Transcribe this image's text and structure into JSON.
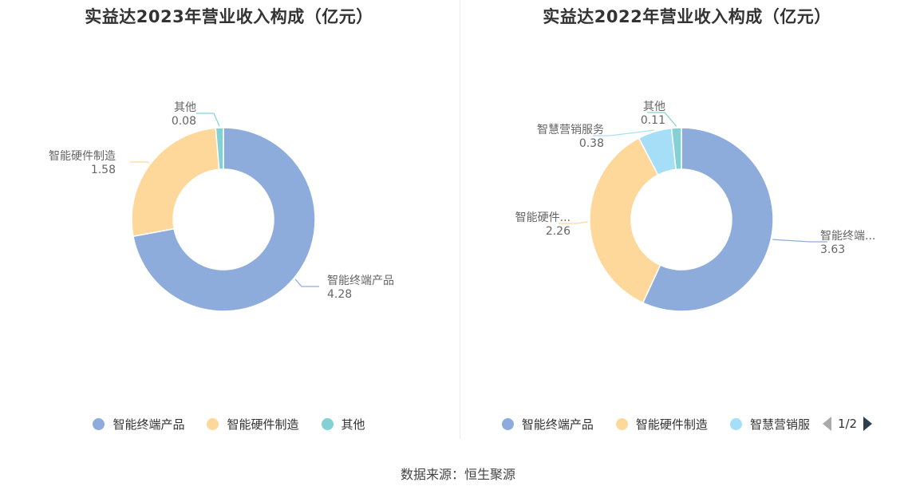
{
  "chart_data": [
    {
      "type": "pie",
      "title": "实益达2023年营业收入构成（亿元）",
      "donut": true,
      "slices": [
        {
          "name": "智能终端产品",
          "label": "智能终端产品",
          "value": 4.28,
          "display": "4.28",
          "color": "#8eacdb"
        },
        {
          "name": "智能硬件制造",
          "label": "智能硬件制造",
          "value": 1.58,
          "display": "1.58",
          "color": "#fdd89a"
        },
        {
          "name": "其他",
          "label": "其他",
          "value": 0.08,
          "display": "0.08",
          "color": "#83d0d5"
        }
      ],
      "legend": {
        "position": "bottom",
        "items": [
          "智能终端产品",
          "智能硬件制造",
          "其他"
        ]
      }
    },
    {
      "type": "pie",
      "title": "实益达2022年营业收入构成（亿元）",
      "donut": true,
      "slices": [
        {
          "name": "智能终端产品",
          "label": "智能终端...",
          "value": 3.63,
          "display": "3.63",
          "color": "#8eacdb"
        },
        {
          "name": "智能硬件制造",
          "label": "智能硬件...",
          "value": 2.26,
          "display": "2.26",
          "color": "#fdd89a"
        },
        {
          "name": "智慧营销服务",
          "label": "智慧营销服务",
          "value": 0.38,
          "display": "0.38",
          "color": "#a6def7"
        },
        {
          "name": "其他",
          "label": "其他",
          "value": 0.11,
          "display": "0.11",
          "color": "#83d0d5"
        }
      ],
      "legend": {
        "position": "bottom",
        "items": [
          "智能终端产品",
          "智能硬件制造",
          "智慧营销服"
        ],
        "pager": "1/2"
      }
    }
  ],
  "footer": {
    "source": "数据来源：恒生聚源"
  }
}
